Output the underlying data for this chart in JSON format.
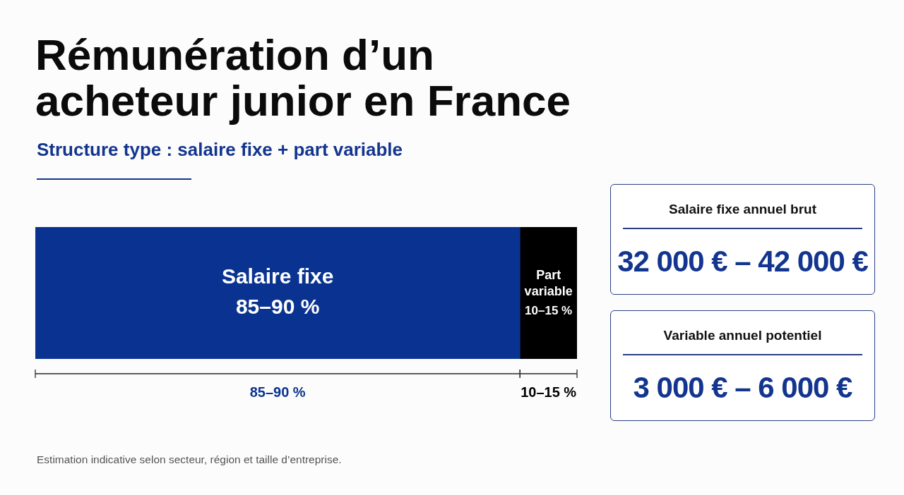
{
  "chart_data": [
    {
      "type": "bar",
      "title": "Rémunération d’un acheteur junior en France",
      "subtitle": "Structure type : salaire fixe + part variable",
      "orientation": "horizontal",
      "stacked": true,
      "categories": [
        null
      ],
      "series": [
        {
          "name": "Salaire fixe",
          "color": "#0a3391",
          "values": [
            85
          ],
          "value_labels": [
            "85–90 %"
          ]
        },
        {
          "name": "Part variable",
          "color": "#000000",
          "values": [
            10
          ],
          "value_labels": [
            "10–15 %"
          ]
        }
      ],
      "annotations": [
        "Estimation indicative selon secteur, région et taille d’entreprise."
      ]
    },
    {
      "type": "other",
      "title": "Salaire fixe annuel brut",
      "annotations": [
        "32 000 € – 42 000 €"
      ]
    },
    {
      "type": "other",
      "title": "Variable annuel potentiel",
      "annotations": [
        "3 000 € – 6 000 €"
      ]
    }
  ]
}
